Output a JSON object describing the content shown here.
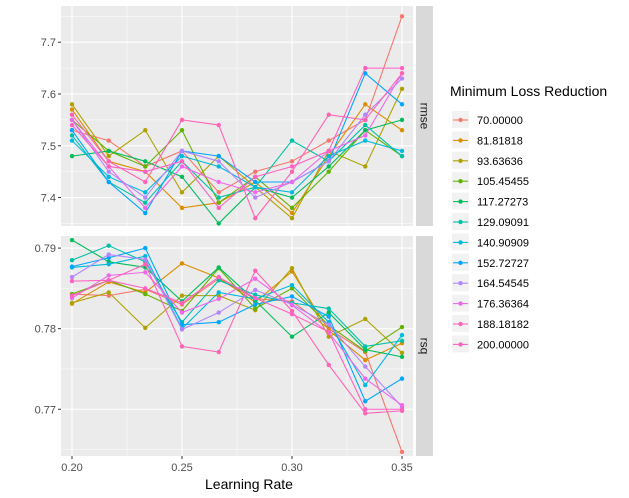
{
  "chart_data": {
    "type": "line",
    "xlabel": "Learning Rate",
    "x_ticks": [
      "0.20",
      "0.25",
      "0.30",
      "0.35"
    ],
    "x_tick_values": [
      0.2,
      0.25,
      0.3,
      0.35
    ],
    "xlim": [
      0.195,
      0.355
    ],
    "x": [
      0.2,
      0.2167,
      0.2333,
      0.25,
      0.2667,
      0.2833,
      0.3,
      0.3167,
      0.3333,
      0.35
    ],
    "legend_title": "Minimum Loss Reduction",
    "legend_position": "right",
    "facets": [
      {
        "label": "rmse",
        "ylim": [
          7.345,
          7.77
        ],
        "y_ticks": [
          "7.4",
          "7.5",
          "7.6",
          "7.7"
        ],
        "y_tick_values": [
          7.4,
          7.5,
          7.6,
          7.7
        ],
        "series": [
          {
            "name": "70.00000",
            "color": "#F8766D",
            "values": [
              7.53,
              7.51,
              7.46,
              7.49,
              7.41,
              7.45,
              7.47,
              7.51,
              7.55,
              7.75
            ]
          },
          {
            "name": "81.81818",
            "color": "#DB8E00",
            "values": [
              7.57,
              7.47,
              7.45,
              7.38,
              7.39,
              7.43,
              7.37,
              7.48,
              7.58,
              7.53
            ]
          },
          {
            "name": "93.63636",
            "color": "#AEA200",
            "values": [
              7.58,
              7.48,
              7.53,
              7.41,
              7.48,
              7.42,
              7.36,
              7.49,
              7.46,
              7.61
            ]
          },
          {
            "name": "105.45455",
            "color": "#64B200",
            "values": [
              7.55,
              7.49,
              7.46,
              7.53,
              7.39,
              7.44,
              7.38,
              7.45,
              7.53,
              7.48
            ]
          },
          {
            "name": "117.27273",
            "color": "#00BD5C",
            "values": [
              7.48,
              7.49,
              7.47,
              7.44,
              7.35,
              7.42,
              7.4,
              7.46,
              7.53,
              7.55
            ]
          },
          {
            "name": "129.09091",
            "color": "#00C1A7",
            "values": [
              7.52,
              7.43,
              7.39,
              7.47,
              7.4,
              7.42,
              7.51,
              7.47,
              7.54,
              7.48
            ]
          },
          {
            "name": "140.90909",
            "color": "#00BADE",
            "values": [
              7.51,
              7.44,
              7.41,
              7.48,
              7.46,
              7.42,
              7.41,
              7.48,
              7.51,
              7.49
            ]
          },
          {
            "name": "152.72727",
            "color": "#00A6FF",
            "values": [
              7.53,
              7.43,
              7.37,
              7.49,
              7.48,
              7.43,
              7.43,
              7.47,
              7.64,
              7.58
            ]
          },
          {
            "name": "164.54545",
            "color": "#B385FF",
            "values": [
              7.55,
              7.45,
              7.4,
              7.49,
              7.47,
              7.4,
              7.43,
              7.47,
              7.56,
              7.63
            ]
          },
          {
            "name": "176.36364",
            "color": "#EF67EB",
            "values": [
              7.55,
              7.46,
              7.38,
              7.46,
              7.43,
              7.41,
              7.43,
              7.49,
              7.52,
              7.64
            ]
          },
          {
            "name": "188.18182",
            "color": "#FF63B6",
            "values": [
              7.56,
              7.47,
              7.43,
              7.55,
              7.54,
              7.36,
              7.45,
              7.56,
              7.55,
              7.64
            ]
          },
          {
            "name": "200.00000",
            "color": "#FF61C3",
            "values": [
              7.54,
              7.46,
              7.45,
              7.47,
              7.38,
              7.44,
              7.46,
              7.49,
              7.65,
              7.65
            ]
          }
        ]
      },
      {
        "label": "rsq",
        "ylim": [
          0.7642,
          0.7915
        ],
        "y_ticks": [
          "0.77",
          "0.78",
          "0.79"
        ],
        "y_tick_values": [
          0.77,
          0.78,
          0.79
        ],
        "series": [
          {
            "name": "70.00000",
            "color": "#F8766D",
            "values": [
              0.7843,
              0.7841,
              0.7849,
              0.783,
              0.7862,
              0.7837,
              0.7834,
              0.78,
              0.7771,
              0.7647
            ]
          },
          {
            "name": "81.81818",
            "color": "#DB8E00",
            "values": [
              0.7831,
              0.7858,
              0.7845,
              0.7881,
              0.7863,
              0.7833,
              0.7871,
              0.7798,
              0.7761,
              0.7782
            ]
          },
          {
            "name": "93.63636",
            "color": "#AEA200",
            "values": [
              0.7832,
              0.7845,
              0.7801,
              0.7841,
              0.7841,
              0.7823,
              0.7875,
              0.779,
              0.7812,
              0.777
            ]
          },
          {
            "name": "105.45455",
            "color": "#64B200",
            "values": [
              0.7843,
              0.786,
              0.7843,
              0.7822,
              0.7875,
              0.7825,
              0.785,
              0.7804,
              0.7772,
              0.7802
            ]
          },
          {
            "name": "117.27273",
            "color": "#00BD5C",
            "values": [
              0.791,
              0.7883,
              0.7876,
              0.7834,
              0.7876,
              0.7835,
              0.779,
              0.782,
              0.7774,
              0.7765
            ]
          },
          {
            "name": "129.09091",
            "color": "#00C1A7",
            "values": [
              0.7885,
              0.7903,
              0.7883,
              0.7808,
              0.786,
              0.7842,
              0.7832,
              0.7825,
              0.7778,
              0.7785
            ]
          },
          {
            "name": "140.90909",
            "color": "#00BADE",
            "values": [
              0.7876,
              0.788,
              0.789,
              0.78,
              0.7845,
              0.7837,
              0.7854,
              0.7808,
              0.773,
              0.7792
            ]
          },
          {
            "name": "152.72727",
            "color": "#00A6FF",
            "values": [
              0.7877,
              0.7888,
              0.79,
              0.7805,
              0.7808,
              0.783,
              0.784,
              0.7815,
              0.771,
              0.7738
            ]
          },
          {
            "name": "164.54545",
            "color": "#B385FF",
            "values": [
              0.7864,
              0.7892,
              0.7886,
              0.7799,
              0.782,
              0.7848,
              0.783,
              0.7805,
              0.7753,
              0.7703
            ]
          },
          {
            "name": "176.36364",
            "color": "#EF67EB",
            "values": [
              0.7838,
              0.7866,
              0.787,
              0.782,
              0.7837,
              0.7862,
              0.7829,
              0.7795,
              0.7738,
              0.7705
            ]
          },
          {
            "name": "188.18182",
            "color": "#FF63B6",
            "values": [
              0.7841,
              0.786,
              0.788,
              0.7778,
              0.7771,
              0.7872,
              0.7822,
              0.7755,
              0.7695,
              0.7698
            ]
          },
          {
            "name": "200.00000",
            "color": "#FF61C3",
            "values": [
              0.7859,
              0.786,
              0.785,
              0.7832,
              0.7864,
              0.7838,
              0.7818,
              0.7796,
              0.77,
              0.77
            ]
          }
        ]
      }
    ],
    "grid": true
  }
}
